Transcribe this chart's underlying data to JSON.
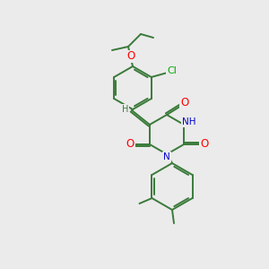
{
  "background_color": "#ebebeb",
  "bond_color": "#3a7a3a",
  "atom_colors": {
    "O": "#ff0000",
    "N": "#0000cc",
    "Cl": "#00aa00",
    "C": "#3a7a3a"
  },
  "figsize": [
    3.0,
    3.0
  ],
  "dpi": 100,
  "lw": 1.4,
  "fs": 7.5
}
